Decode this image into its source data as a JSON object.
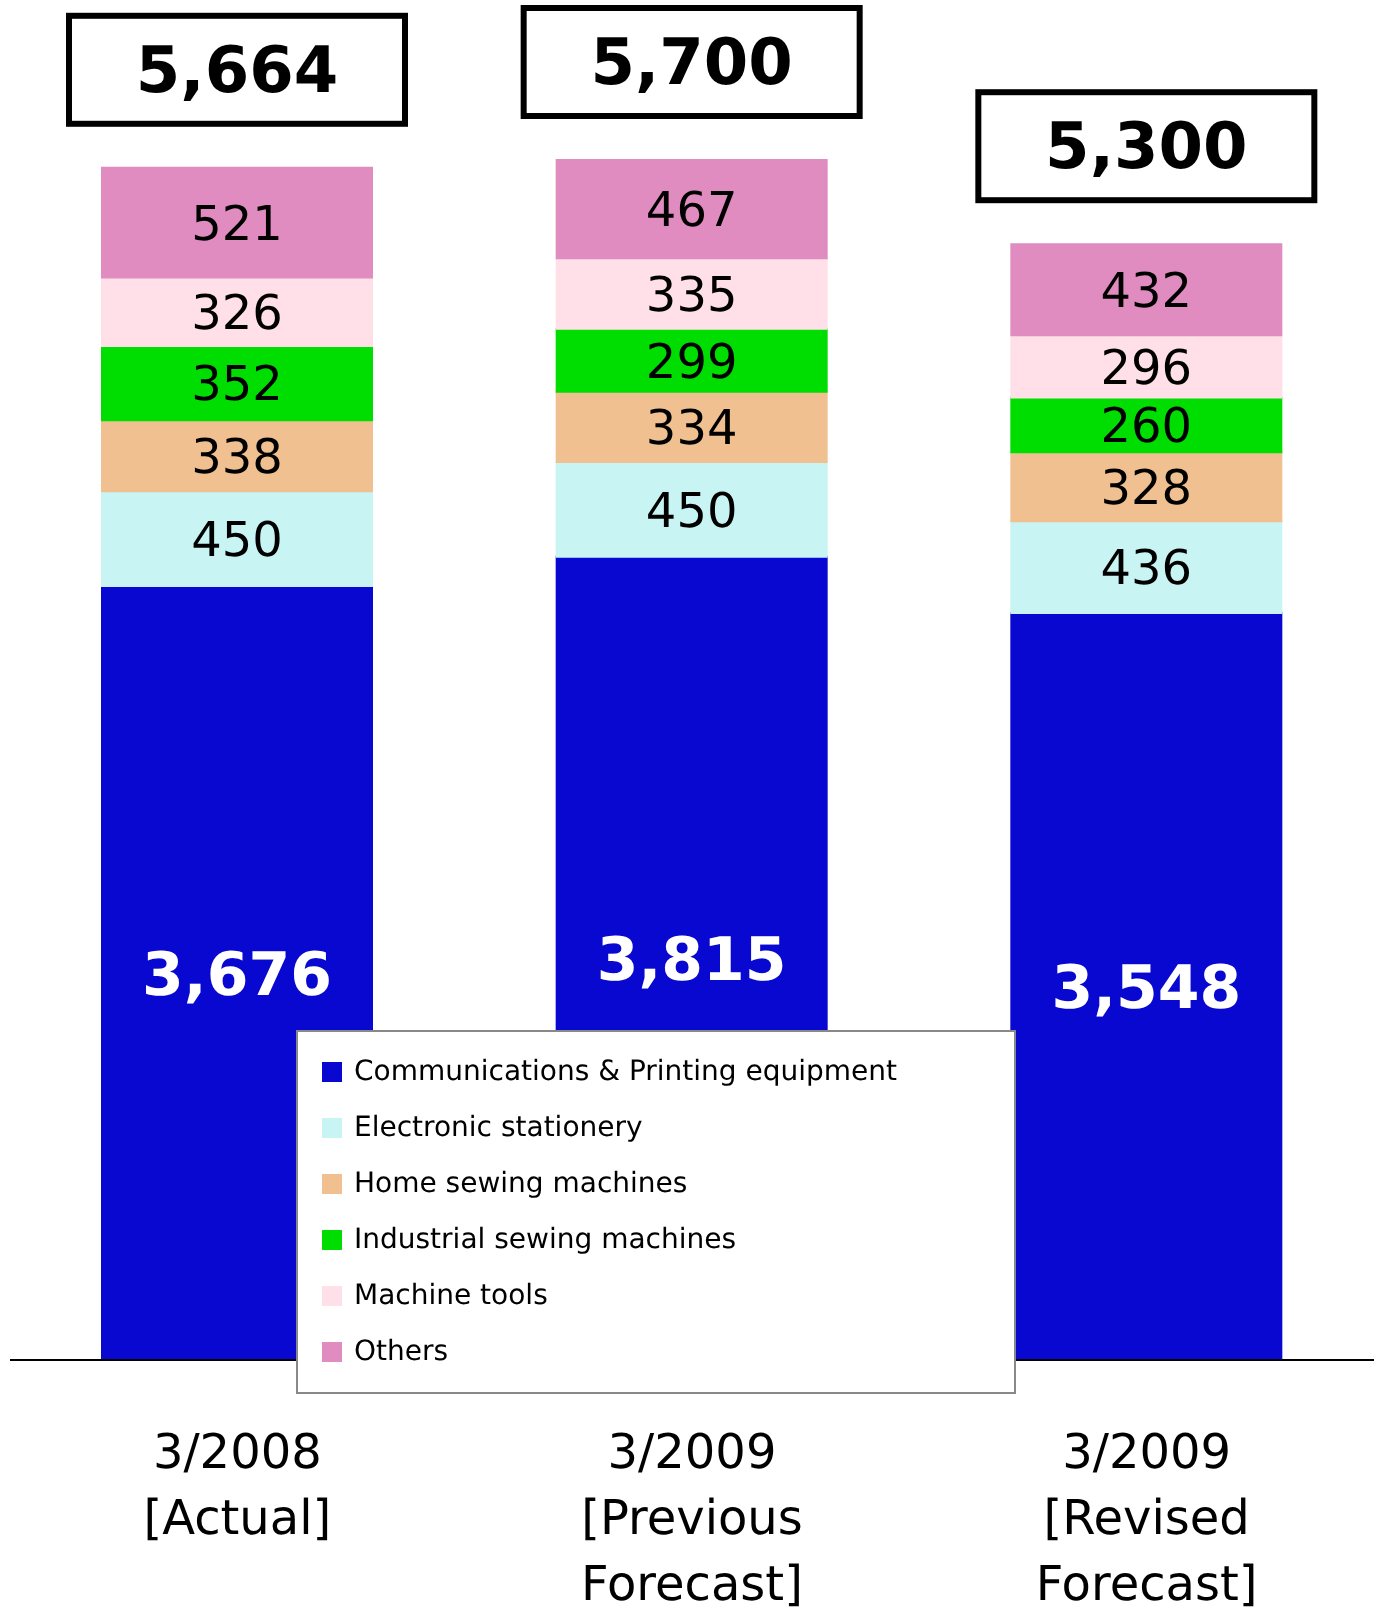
{
  "chart_data": {
    "type": "bar",
    "stacked": true,
    "categories": [
      "3/2008 [Actual]",
      "3/2009 [Previous Forecast]",
      "3/2009 [Revised Forecast]"
    ],
    "series": [
      {
        "name": "Communications & Printing equipment",
        "color": "#0808d0",
        "values": [
          3676,
          3815,
          3548
        ],
        "value_labels": [
          "3,676",
          "3,815",
          "3,548"
        ]
      },
      {
        "name": "Electronic stationery",
        "color": "#c8f4f4",
        "values": [
          450,
          450,
          436
        ],
        "value_labels": [
          "450",
          "450",
          "436"
        ]
      },
      {
        "name": "Home sewing machines",
        "color": "#f0c090",
        "values": [
          338,
          334,
          328
        ],
        "value_labels": [
          "338",
          "334",
          "328"
        ]
      },
      {
        "name": "Industrial sewing machines",
        "color": "#00dd00",
        "values": [
          352,
          299,
          260
        ],
        "value_labels": [
          "352",
          "299",
          "260"
        ]
      },
      {
        "name": "Machine tools",
        "color": "#ffe0e8",
        "values": [
          326,
          335,
          296
        ],
        "value_labels": [
          "326",
          "335",
          "296"
        ]
      },
      {
        "name": "Others",
        "color": "#e08cc0",
        "values": [
          521,
          467,
          432
        ],
        "value_labels": [
          "521",
          "467",
          "432"
        ]
      }
    ],
    "totals": [
      "5,664",
      "5,700",
      "5,300"
    ],
    "legend": "bottom"
  }
}
